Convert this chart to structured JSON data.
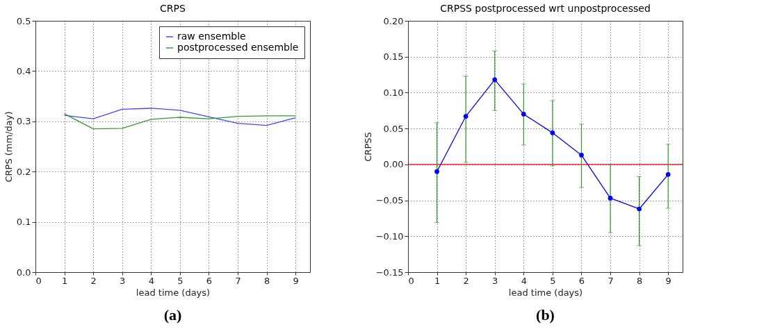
{
  "chart_data": [
    {
      "type": "line",
      "title": "CRPS",
      "xlabel": "lead time  (days)",
      "ylabel": "CRPS (mm/day)",
      "x": [
        1,
        2,
        3,
        4,
        5,
        6,
        7,
        8,
        9
      ],
      "series": [
        {
          "name": "raw ensemble",
          "color": "#4444ff",
          "values": [
            0.312,
            0.305,
            0.324,
            0.326,
            0.322,
            0.309,
            0.296,
            0.292,
            0.307
          ]
        },
        {
          "name": "postprocessed ensemble",
          "color": "#339933",
          "values": [
            0.315,
            0.285,
            0.286,
            0.304,
            0.308,
            0.305,
            0.31,
            0.311,
            0.311
          ]
        }
      ],
      "xlim": [
        0,
        9.5
      ],
      "xticks": [
        0,
        1,
        2,
        3,
        4,
        5,
        6,
        7,
        8,
        9
      ],
      "ylim": [
        0,
        0.5
      ],
      "yticks": [
        {
          "value": 0,
          "label": "0.0"
        },
        0.1,
        0.2,
        0.3,
        0.4,
        0.5
      ],
      "grid": true,
      "legend": "top right",
      "marker": "none",
      "line_style": "solid",
      "annotations": [
        "(a)"
      ]
    },
    {
      "type": "line",
      "title": "CRPSS postprocessed wrt unpostprocessed",
      "xlabel": "lead time  (days)",
      "ylabel": "CRPSS",
      "x": [
        1,
        2,
        3,
        4,
        5,
        6,
        7,
        8,
        9
      ],
      "series": [
        {
          "color": "#0000ff",
          "values": [
            -0.01,
            0.067,
            0.118,
            0.07,
            0.044,
            0.013,
            -0.047,
            -0.062,
            -0.014
          ],
          "errors": [
            [
              -0.081,
              0.058
            ],
            [
              0.003,
              0.123
            ],
            [
              0.075,
              0.158
            ],
            [
              0.027,
              0.112
            ],
            [
              -0.002,
              0.089
            ],
            [
              -0.032,
              0.056
            ],
            [
              -0.095,
              0.0
            ],
            [
              -0.113,
              -0.017
            ],
            [
              -0.061,
              0.028
            ]
          ]
        }
      ],
      "xlim": [
        0,
        9.5
      ],
      "xticks": [
        0,
        1,
        2,
        3,
        4,
        5,
        6,
        7,
        8,
        9
      ],
      "ylim": [
        -0.15,
        0.2
      ],
      "yticks": [
        {
          "value": -0.15,
          "label": "−0.15"
        },
        {
          "value": -0.1,
          "label": "−0.10"
        },
        {
          "value": -0.05,
          "label": "−0.05"
        },
        {
          "value": 0,
          "label": "0.00"
        },
        {
          "value": 0.05,
          "label": "0.05"
        },
        {
          "value": 0.1,
          "label": "0.10"
        },
        {
          "value": 0.15,
          "label": "0.15"
        },
        {
          "value": 0.2,
          "label": "0.20"
        }
      ],
      "ref_lines": [
        {
          "axis": "y",
          "value": 0,
          "color": "#ff0000"
        }
      ],
      "grid": true,
      "marker": "circle",
      "line_style": "solid",
      "annotations": [
        "(b)"
      ]
    }
  ]
}
